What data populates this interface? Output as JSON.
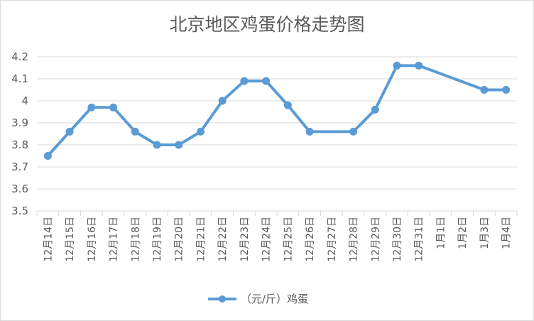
{
  "chart_data": {
    "type": "line",
    "title": "北京地区鸡蛋价格走势图",
    "xlabel": "",
    "ylabel": "",
    "categories": [
      "12月14日",
      "12月15日",
      "12月16日",
      "12月17日",
      "12月18日",
      "12月19日",
      "12月20日",
      "12月21日",
      "12月22日",
      "12月23日",
      "12月24日",
      "12月25日",
      "12月26日",
      "12月27日",
      "12月28日",
      "12月29日",
      "12月30日",
      "12月31日",
      "1月1日",
      "1月2日",
      "1月3日",
      "1月4日"
    ],
    "series": [
      {
        "name": "（元/斤）鸡蛋",
        "values": [
          3.75,
          3.86,
          3.97,
          3.97,
          3.86,
          3.8,
          3.8,
          3.86,
          4.0,
          4.09,
          4.09,
          3.98,
          3.86,
          null,
          3.86,
          3.96,
          4.16,
          4.16,
          null,
          null,
          4.05,
          4.05
        ]
      }
    ],
    "ylim": [
      3.5,
      4.2
    ],
    "yticks": [
      "3.5",
      "3.6",
      "3.7",
      "3.8",
      "3.9",
      "4",
      "4.1",
      "4.2"
    ],
    "grid": true,
    "legend": "bottom",
    "colors": {
      "line": "#5B9BD5",
      "grid": "#d9d9d9",
      "text": "#595959"
    }
  }
}
